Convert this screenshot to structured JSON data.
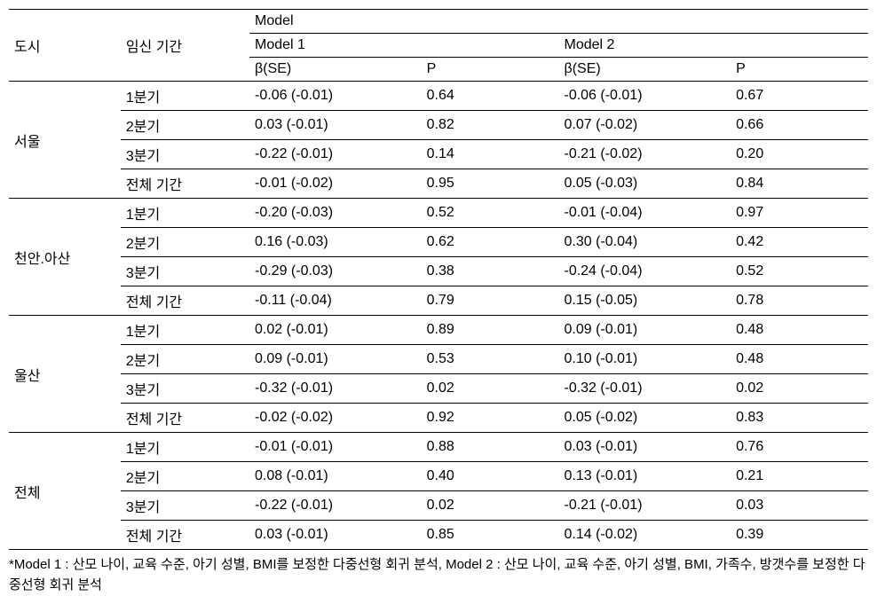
{
  "header": {
    "city": "도시",
    "period": "임신 기간",
    "model": "Model",
    "model1": "Model 1",
    "model2": "Model 2",
    "bse": "β(SE)",
    "p": "P"
  },
  "groups": [
    {
      "city": "서울",
      "rows": [
        {
          "period": "1분기",
          "m1_bse": "-0.06 (-0.01)",
          "m1_p": "0.64",
          "m2_bse": "-0.06 (-0.01)",
          "m2_p": "0.67"
        },
        {
          "period": "2분기",
          "m1_bse": "0.03 (-0.01)",
          "m1_p": "0.82",
          "m2_bse": "0.07 (-0.02)",
          "m2_p": "0.66"
        },
        {
          "period": "3분기",
          "m1_bse": "-0.22 (-0.01)",
          "m1_p": "0.14",
          "m2_bse": "-0.21 (-0.02)",
          "m2_p": "0.20"
        },
        {
          "period": "전체 기간",
          "m1_bse": "-0.01 (-0.02)",
          "m1_p": "0.95",
          "m2_bse": "0.05 (-0.03)",
          "m2_p": "0.84"
        }
      ]
    },
    {
      "city": "천안.아산",
      "rows": [
        {
          "period": "1분기",
          "m1_bse": "-0.20 (-0.03)",
          "m1_p": "0.52",
          "m2_bse": "-0.01 (-0.04)",
          "m2_p": "0.97"
        },
        {
          "period": "2분기",
          "m1_bse": "0.16 (-0.03)",
          "m1_p": "0.62",
          "m2_bse": "0.30 (-0.04)",
          "m2_p": "0.42"
        },
        {
          "period": "3분기",
          "m1_bse": "-0.29 (-0.03)",
          "m1_p": "0.38",
          "m2_bse": "-0.24 (-0.04)",
          "m2_p": "0.52"
        },
        {
          "period": "전체 기간",
          "m1_bse": "-0.11 (-0.04)",
          "m1_p": "0.79",
          "m2_bse": "0.15 (-0.05)",
          "m2_p": "0.78"
        }
      ]
    },
    {
      "city": "울산",
      "rows": [
        {
          "period": "1분기",
          "m1_bse": "0.02 (-0.01)",
          "m1_p": "0.89",
          "m2_bse": "0.09 (-0.01)",
          "m2_p": "0.48"
        },
        {
          "period": "2분기",
          "m1_bse": "0.09 (-0.01)",
          "m1_p": "0.53",
          "m2_bse": "0.10 (-0.01)",
          "m2_p": "0.48"
        },
        {
          "period": "3분기",
          "m1_bse": "-0.32 (-0.01)",
          "m1_p": "0.02",
          "m2_bse": "-0.32 (-0.01)",
          "m2_p": "0.02"
        },
        {
          "period": "전체 기간",
          "m1_bse": "-0.02 (-0.02)",
          "m1_p": "0.92",
          "m2_bse": "0.05 (-0.02)",
          "m2_p": "0.83"
        }
      ]
    },
    {
      "city": "전체",
      "rows": [
        {
          "period": "1분기",
          "m1_bse": "-0.01 (-0.01)",
          "m1_p": "0.88",
          "m2_bse": "0.03 (-0.01)",
          "m2_p": "0.76"
        },
        {
          "period": "2분기",
          "m1_bse": "0.08 (-0.01)",
          "m1_p": "0.40",
          "m2_bse": "0.13 (-0.01)",
          "m2_p": "0.21"
        },
        {
          "period": "3분기",
          "m1_bse": "-0.22 (-0.01)",
          "m1_p": "0.02",
          "m2_bse": "-0.21 (-0.01)",
          "m2_p": "0.03"
        },
        {
          "period": "전체 기간",
          "m1_bse": "0.03 (-0.01)",
          "m1_p": "0.85",
          "m2_bse": "0.14 (-0.02)",
          "m2_p": "0.39"
        }
      ]
    }
  ],
  "footnote": "*Model 1 : 산모 나이, 교육 수준, 아기 성별, BMI를 보정한 다중선형 회귀 분석, Model 2 : 산모 나이, 교육 수준, 아기 성별, BMI, 가족수, 방갯수를 보정한 다중선형 회귀 분석",
  "style": {
    "font_size_pt": 16,
    "footnote_font_size_pt": 15,
    "text_color": "#000000",
    "border_color": "#000000",
    "background_color": "#ffffff"
  }
}
